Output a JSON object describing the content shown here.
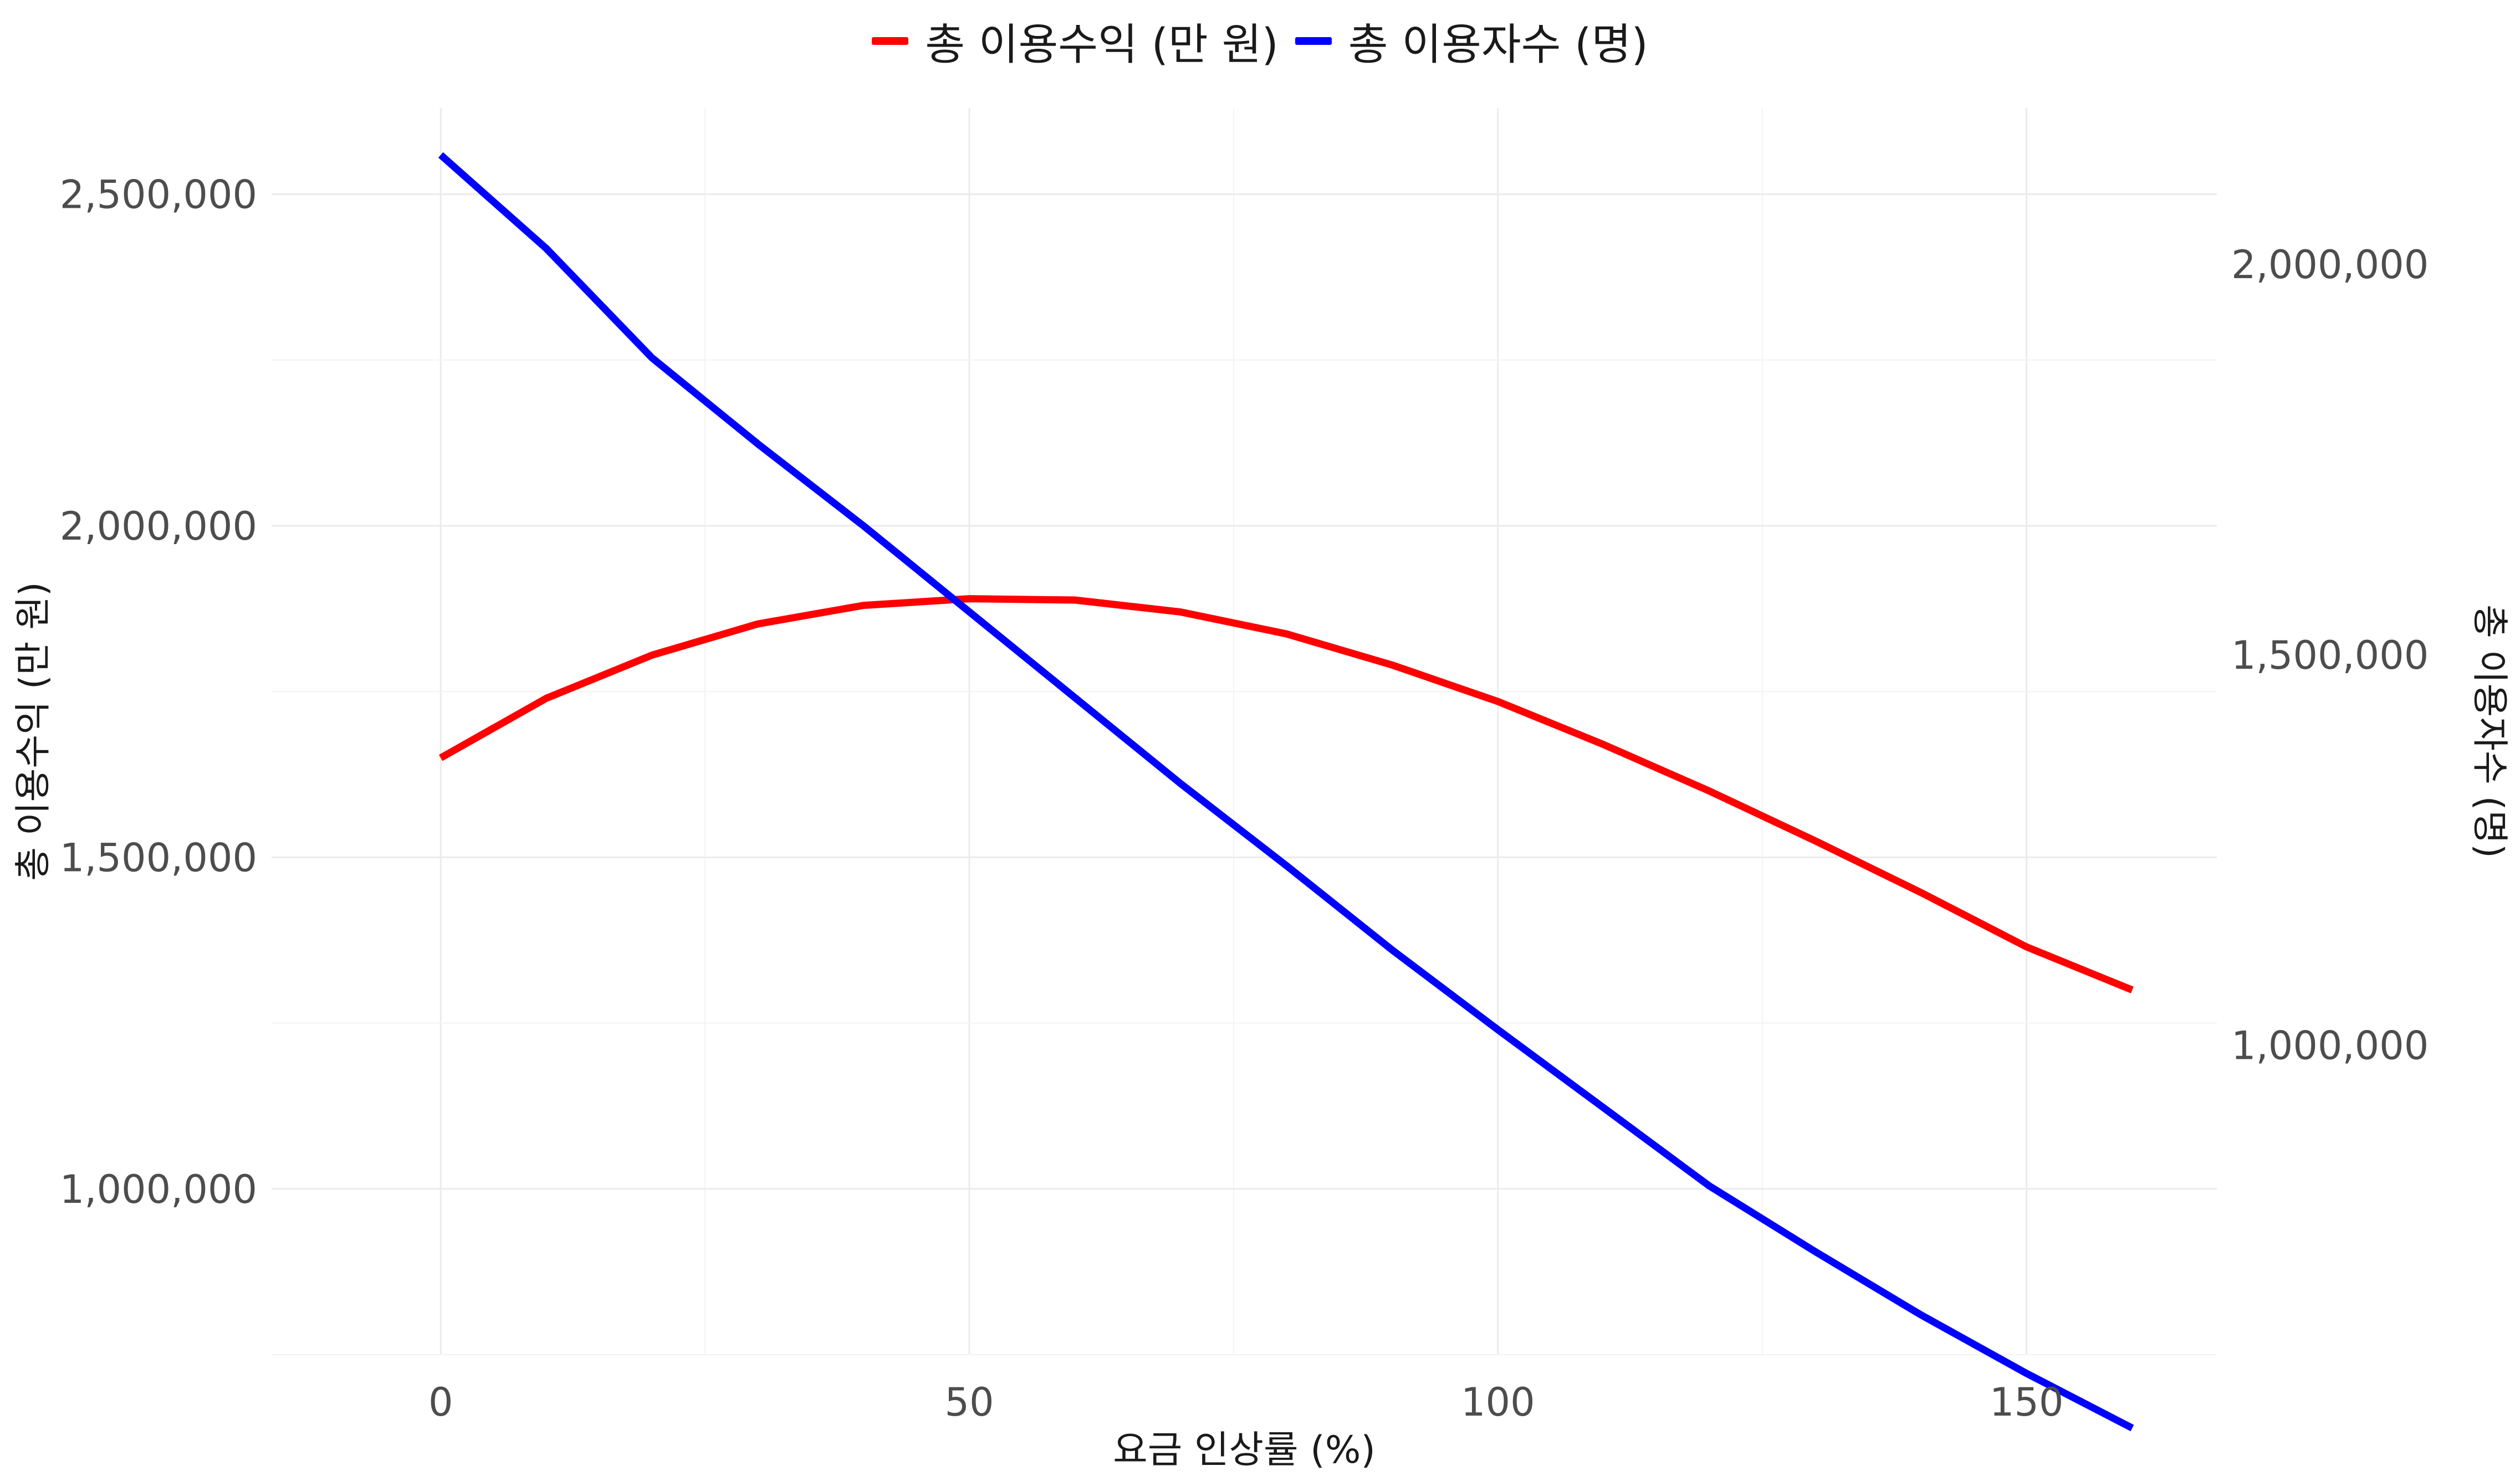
{
  "chart_data": {
    "type": "line",
    "xlabel": "요금 인상률 (%)",
    "ylabel_left": "총 이용수익 (만 원)",
    "ylabel_right": "총 이용자수 (명)",
    "xlim": [
      -16,
      168
    ],
    "ylim_left": [
      750000,
      2630000
    ],
    "ylim_right": [
      604000,
      2200000
    ],
    "x_ticks": [
      0,
      50,
      100,
      150
    ],
    "x_tick_labels": [
      "0",
      "50",
      "100",
      "150"
    ],
    "y_left_ticks": [
      1000000,
      1500000,
      2000000,
      2500000
    ],
    "y_left_tick_labels": [
      "1,000,000",
      "1,500,000",
      "2,000,000",
      "2,500,000"
    ],
    "y_right_ticks": [
      1000000,
      1500000,
      2000000
    ],
    "y_right_tick_labels": [
      "1,000,000",
      "1,500,000",
      "2,000,000"
    ],
    "grid": true,
    "legend_position": "top",
    "x": [
      0,
      10,
      20,
      30,
      40,
      50,
      60,
      70,
      80,
      90,
      100,
      110,
      120,
      130,
      140,
      150,
      160
    ],
    "series": [
      {
        "name": "총 이용수익 (만 원)",
        "axis": "left",
        "color": "#ff0000",
        "values": [
          1650000,
          1740000,
          1805000,
          1852000,
          1880000,
          1890000,
          1888000,
          1870000,
          1837000,
          1790000,
          1735000,
          1670000,
          1600000,
          1525000,
          1447000,
          1365000,
          1300000
        ]
      },
      {
        "name": "총 이용자수 (명)",
        "axis": "right",
        "color": "#0000ff",
        "values": [
          2140000,
          2020000,
          1880000,
          1770000,
          1665000,
          1555000,
          1445000,
          1335000,
          1230000,
          1122000,
          1020000,
          920000,
          820000,
          736000,
          655000,
          580000,
          510000
        ]
      }
    ]
  }
}
